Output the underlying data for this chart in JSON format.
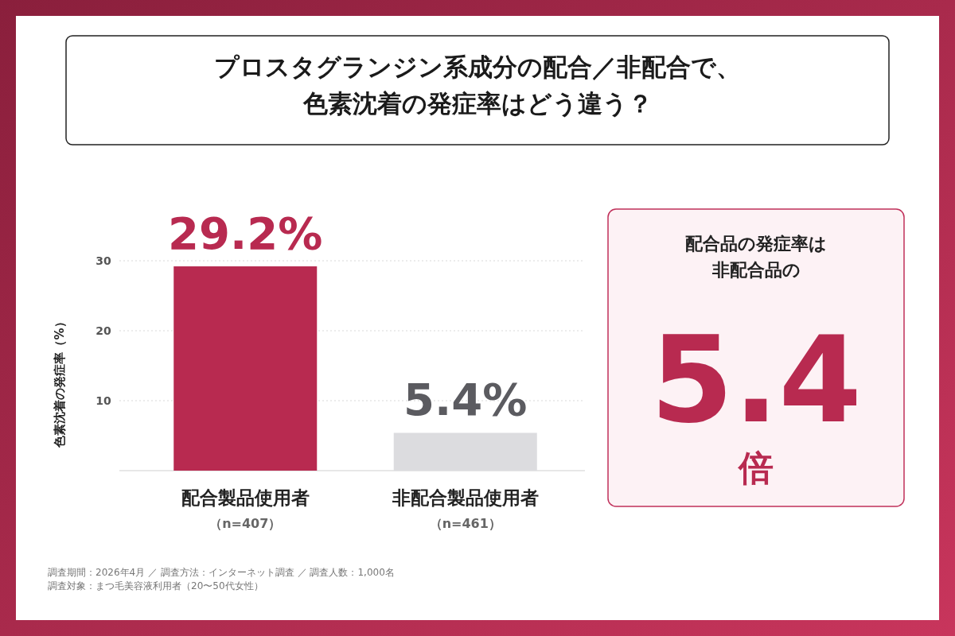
{
  "chart_data": [
    {
      "type": "bar",
      "title": "プロスタグランジン系成分の配合／非配合で、色素沈着の発症率はどう違う？",
      "ylabel": "色素沈着の発症率（%）",
      "categories": [
        "配合製品使用者（n=407）",
        "非配合製品使用者（n=461）"
      ],
      "values": [
        29.2,
        5.4
      ],
      "colors": [
        "#b82a50",
        "#dcdcdf"
      ],
      "value_labels": [
        "29.2%",
        "5.4%"
      ],
      "ylim": [
        0,
        30
      ],
      "yticks": [
        10,
        20,
        30
      ],
      "grid": "y",
      "annotations": [
        "調査期間：2026年4月 ／ 調査方法：インターネット調査 ／ 調査人数：1,000名",
        "調査対象：まつ毛美容液利用者（20〜50代女性）"
      ]
    },
    {
      "type": "other",
      "title": "配合品の発症率は非配合品の",
      "annotations": [
        "5.4",
        "倍"
      ]
    }
  ]
}
